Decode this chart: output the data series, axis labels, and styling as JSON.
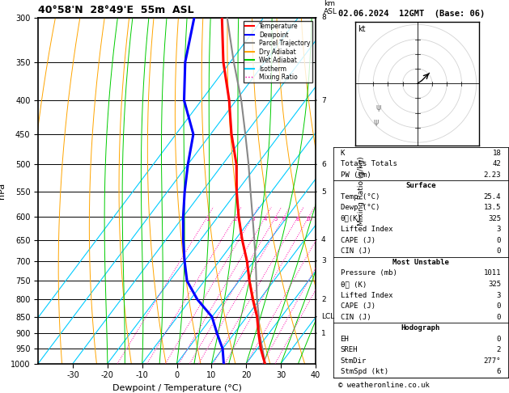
{
  "title_left": "40°58'N  28°49'E  55m  ASL",
  "title_right": "02.06.2024  12GMT  (Base: 06)",
  "xlabel": "Dewpoint / Temperature (°C)",
  "ylabel_left": "hPa",
  "x_min": -40,
  "x_max": 40,
  "pressure_labels": [
    300,
    350,
    400,
    450,
    500,
    550,
    600,
    650,
    700,
    750,
    800,
    850,
    900,
    950,
    1000
  ],
  "km_ticks": {
    "300": "8",
    "400": "7",
    "500": "6",
    "550": "5",
    "650": "4",
    "700": "3",
    "800": "2",
    "850": "LCL",
    "900": "1"
  },
  "background_color": "white",
  "isotherm_color": "#00ccff",
  "dry_adiabat_color": "orange",
  "wet_adiabat_color": "#00cc00",
  "mixing_ratio_color": "#ff00aa",
  "temp_profile_color": "red",
  "dewp_profile_color": "blue",
  "parcel_color": "#888888",
  "legend_items": [
    {
      "label": "Temperature",
      "color": "red",
      "ls": "-"
    },
    {
      "label": "Dewpoint",
      "color": "blue",
      "ls": "-"
    },
    {
      "label": "Parcel Trajectory",
      "color": "#888888",
      "ls": "-"
    },
    {
      "label": "Dry Adiabat",
      "color": "orange",
      "ls": "-"
    },
    {
      "label": "Wet Adiabat",
      "color": "#00cc00",
      "ls": "-"
    },
    {
      "label": "Isotherm",
      "color": "#00ccff",
      "ls": "-"
    },
    {
      "label": "Mixing Ratio",
      "color": "#ff00aa",
      "ls": ":"
    }
  ],
  "stats": {
    "K": 18,
    "Totals Totals": 42,
    "PW (cm)": 2.23,
    "Surface": {
      "Temp (°C)": 25.4,
      "Dewp (°C)": 13.5,
      "theta_e(K)": 325,
      "Lifted Index": 3,
      "CAPE (J)": 0,
      "CIN (J)": 0
    },
    "Most Unstable": {
      "Pressure (mb)": 1011,
      "theta_e (K)": 325,
      "Lifted Index": 3,
      "CAPE (J)": 0,
      "CIN (J)": 0
    },
    "Hodograph": {
      "EH": 0,
      "SREH": 2,
      "StmDir": "277°",
      "StmSpd (kt)": 6
    }
  },
  "temp_profile": {
    "pressure": [
      1000,
      950,
      900,
      850,
      800,
      750,
      700,
      650,
      600,
      550,
      500,
      450,
      400,
      350,
      300
    ],
    "temp": [
      25.4,
      21.0,
      17.0,
      13.0,
      8.0,
      3.0,
      -2.0,
      -8.0,
      -14.0,
      -20.0,
      -26.0,
      -34.0,
      -42.0,
      -52.0,
      -62.0
    ]
  },
  "dewp_profile": {
    "pressure": [
      1000,
      950,
      900,
      850,
      800,
      750,
      700,
      650,
      600,
      550,
      500,
      450,
      400,
      350,
      300
    ],
    "dewp": [
      13.5,
      10.0,
      5.0,
      0.0,
      -8.0,
      -15.0,
      -20.0,
      -25.0,
      -30.0,
      -35.0,
      -40.0,
      -45.0,
      -55.0,
      -63.0,
      -70.0
    ]
  },
  "parcel_profile": {
    "pressure": [
      1000,
      950,
      900,
      850,
      800,
      750,
      700,
      650,
      600,
      550,
      500,
      450,
      400,
      350,
      300
    ],
    "temp": [
      25.4,
      21.5,
      17.2,
      13.5,
      9.2,
      5.0,
      0.5,
      -4.5,
      -10.0,
      -16.0,
      -22.5,
      -30.0,
      -38.5,
      -49.0,
      -60.5
    ]
  },
  "hodograph": {
    "u": [
      0,
      3,
      6,
      8
    ],
    "v": [
      0,
      2,
      5,
      7
    ]
  },
  "copyright": "© weatheronline.co.uk"
}
